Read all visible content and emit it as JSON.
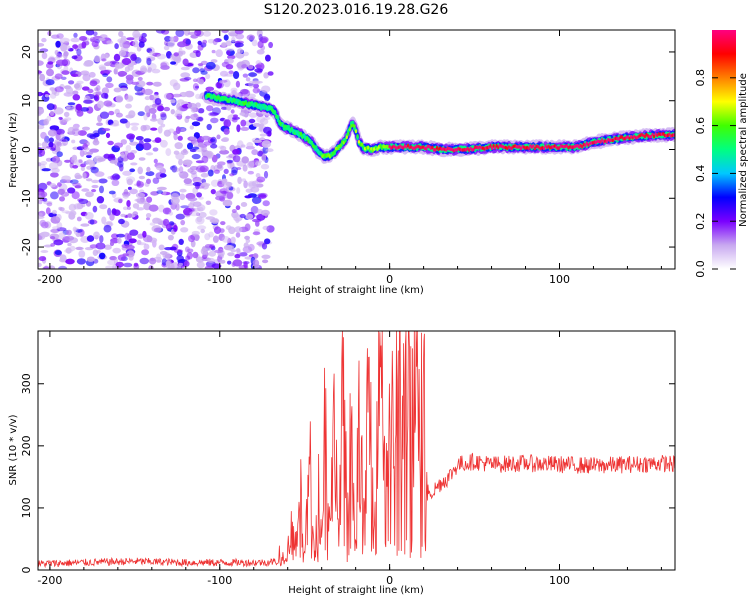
{
  "title": "S120.2023.016.19.28.G26",
  "chart_data": [
    {
      "type": "heatmap",
      "name": "spectrogram",
      "xlabel": "Height of straight line (km)",
      "ylabel": "Frequency (Hz)",
      "xlim": [
        -207,
        168
      ],
      "ylim": [
        -24.5,
        24.5
      ],
      "x_ticks": [
        -200,
        -100,
        0,
        100
      ],
      "y_ticks": [
        -20,
        -10,
        0,
        10,
        20
      ],
      "colorbar": {
        "label": "Normalized spectral amplitude",
        "range": [
          0,
          1
        ],
        "ticks": [
          0.0,
          0.2,
          0.4,
          0.6,
          0.8
        ],
        "colors": [
          "#ffffff",
          "#c8a8f0",
          "#7a00ff",
          "#0000ff",
          "#00c8ff",
          "#00ff80",
          "#40ff00",
          "#ffff00",
          "#ff8000",
          "#ff0000",
          "#ff0080"
        ]
      },
      "noise_region": [
        -207,
        -70
      ],
      "track": {
        "x": [
          -108,
          -100,
          -92,
          -85,
          -78,
          -72,
          -68,
          -64,
          -58,
          -52,
          -46,
          -42,
          -38,
          -34,
          -30,
          -26,
          -22,
          -20,
          -18,
          -15,
          -10,
          -5,
          0,
          10,
          20,
          30,
          40,
          50,
          60,
          70,
          80,
          90,
          100,
          110,
          120,
          130,
          140,
          150,
          160,
          168
        ],
        "y": [
          11,
          10.5,
          10,
          9.5,
          9,
          8.5,
          8,
          5,
          4,
          3,
          1.5,
          -0.5,
          -1.5,
          -1,
          0.5,
          2,
          5.5,
          4,
          1.5,
          0.2,
          0,
          0.5,
          0.5,
          0.5,
          0.5,
          0,
          0,
          0.2,
          0.5,
          0.5,
          0.5,
          0.5,
          0.5,
          0.5,
          1.5,
          2,
          2.5,
          2.8,
          3,
          3
        ]
      }
    },
    {
      "type": "line",
      "name": "snr",
      "xlabel": "Height of straight line (km)",
      "ylabel": "SNR (10 * v/v)",
      "xlim": [
        -207,
        168
      ],
      "ylim": [
        0,
        385
      ],
      "x_ticks": [
        -200,
        -100,
        0,
        100
      ],
      "y_ticks": [
        0,
        100,
        200,
        300
      ],
      "series": [
        {
          "color": "#ee3333",
          "x": [
            -207,
            -180,
            -150,
            -120,
            -90,
            -75,
            -65,
            -60,
            -58,
            -55,
            -52,
            -50,
            -47,
            -44,
            -42,
            -40,
            -38,
            -35,
            -32,
            -30,
            -28,
            -25,
            -22,
            -20,
            -18,
            -15,
            -12,
            -10,
            -8,
            -6,
            -4,
            -2,
            0,
            2,
            5,
            8,
            10,
            12,
            15,
            18,
            20,
            21,
            22,
            23,
            25,
            30,
            35,
            40,
            50,
            60,
            80,
            100,
            120,
            140,
            160,
            168
          ],
          "y": [
            10,
            12,
            14,
            12,
            12,
            12,
            14,
            30,
            80,
            40,
            120,
            30,
            170,
            20,
            210,
            40,
            260,
            60,
            280,
            20,
            300,
            100,
            250,
            30,
            280,
            60,
            320,
            100,
            250,
            385,
            280,
            200,
            300,
            230,
            320,
            250,
            350,
            300,
            320,
            280,
            330,
            200,
            120,
            130,
            125,
            140,
            150,
            170,
            175,
            170,
            172,
            170,
            168,
            170,
            172,
            170
          ]
        }
      ]
    }
  ]
}
